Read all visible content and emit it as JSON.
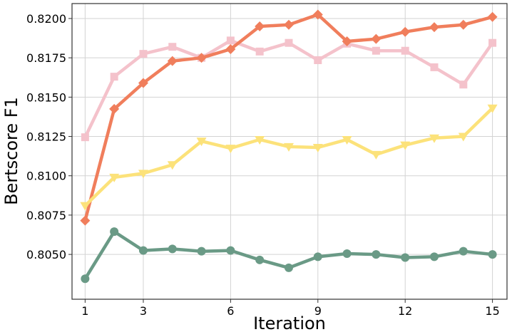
{
  "chart_data": {
    "type": "line",
    "xlabel": "Iteration",
    "ylabel": "Bertscore F1",
    "x": [
      1,
      2,
      3,
      4,
      5,
      6,
      7,
      8,
      9,
      10,
      11,
      12,
      13,
      14,
      15
    ],
    "xlim": [
      0.55,
      15.5
    ],
    "ylim": [
      0.80215,
      0.82095
    ],
    "xticks": [
      1,
      3,
      6,
      9,
      12,
      15
    ],
    "xtick_labels": [
      "1",
      "3",
      "6",
      "9",
      "12",
      "15"
    ],
    "yticks": [
      0.805,
      0.8075,
      0.81,
      0.8125,
      0.815,
      0.8175,
      0.82
    ],
    "ytick_labels": [
      "0.8050",
      "0.8075",
      "0.8100",
      "0.8125",
      "0.8150",
      "0.8175",
      "0.8200"
    ],
    "grid": true,
    "legend": "none",
    "series": [
      {
        "color": "#f4c2cb",
        "marker": "square",
        "values": [
          0.81245,
          0.8163,
          0.81775,
          0.8182,
          0.8175,
          0.8186,
          0.8179,
          0.81845,
          0.81735,
          0.8184,
          0.81795,
          0.81795,
          0.8169,
          0.8158,
          0.81845
        ]
      },
      {
        "color": "#f07e5c",
        "marker": "diamond",
        "values": [
          0.80715,
          0.81425,
          0.8159,
          0.8173,
          0.8175,
          0.81805,
          0.8195,
          0.8196,
          0.82025,
          0.81855,
          0.8187,
          0.81915,
          0.81945,
          0.8196,
          0.8201
        ]
      },
      {
        "color": "#fce27a",
        "marker": "triangle-down",
        "values": [
          0.8081,
          0.8099,
          0.81015,
          0.8107,
          0.8122,
          0.81175,
          0.8123,
          0.81185,
          0.8118,
          0.8123,
          0.81135,
          0.81195,
          0.8124,
          0.8125,
          0.8143
        ]
      },
      {
        "color": "#6a9a86",
        "marker": "circle",
        "values": [
          0.80345,
          0.80645,
          0.80525,
          0.80535,
          0.8052,
          0.80525,
          0.80465,
          0.80415,
          0.80485,
          0.80505,
          0.805,
          0.8048,
          0.80485,
          0.8052,
          0.805
        ]
      }
    ]
  }
}
